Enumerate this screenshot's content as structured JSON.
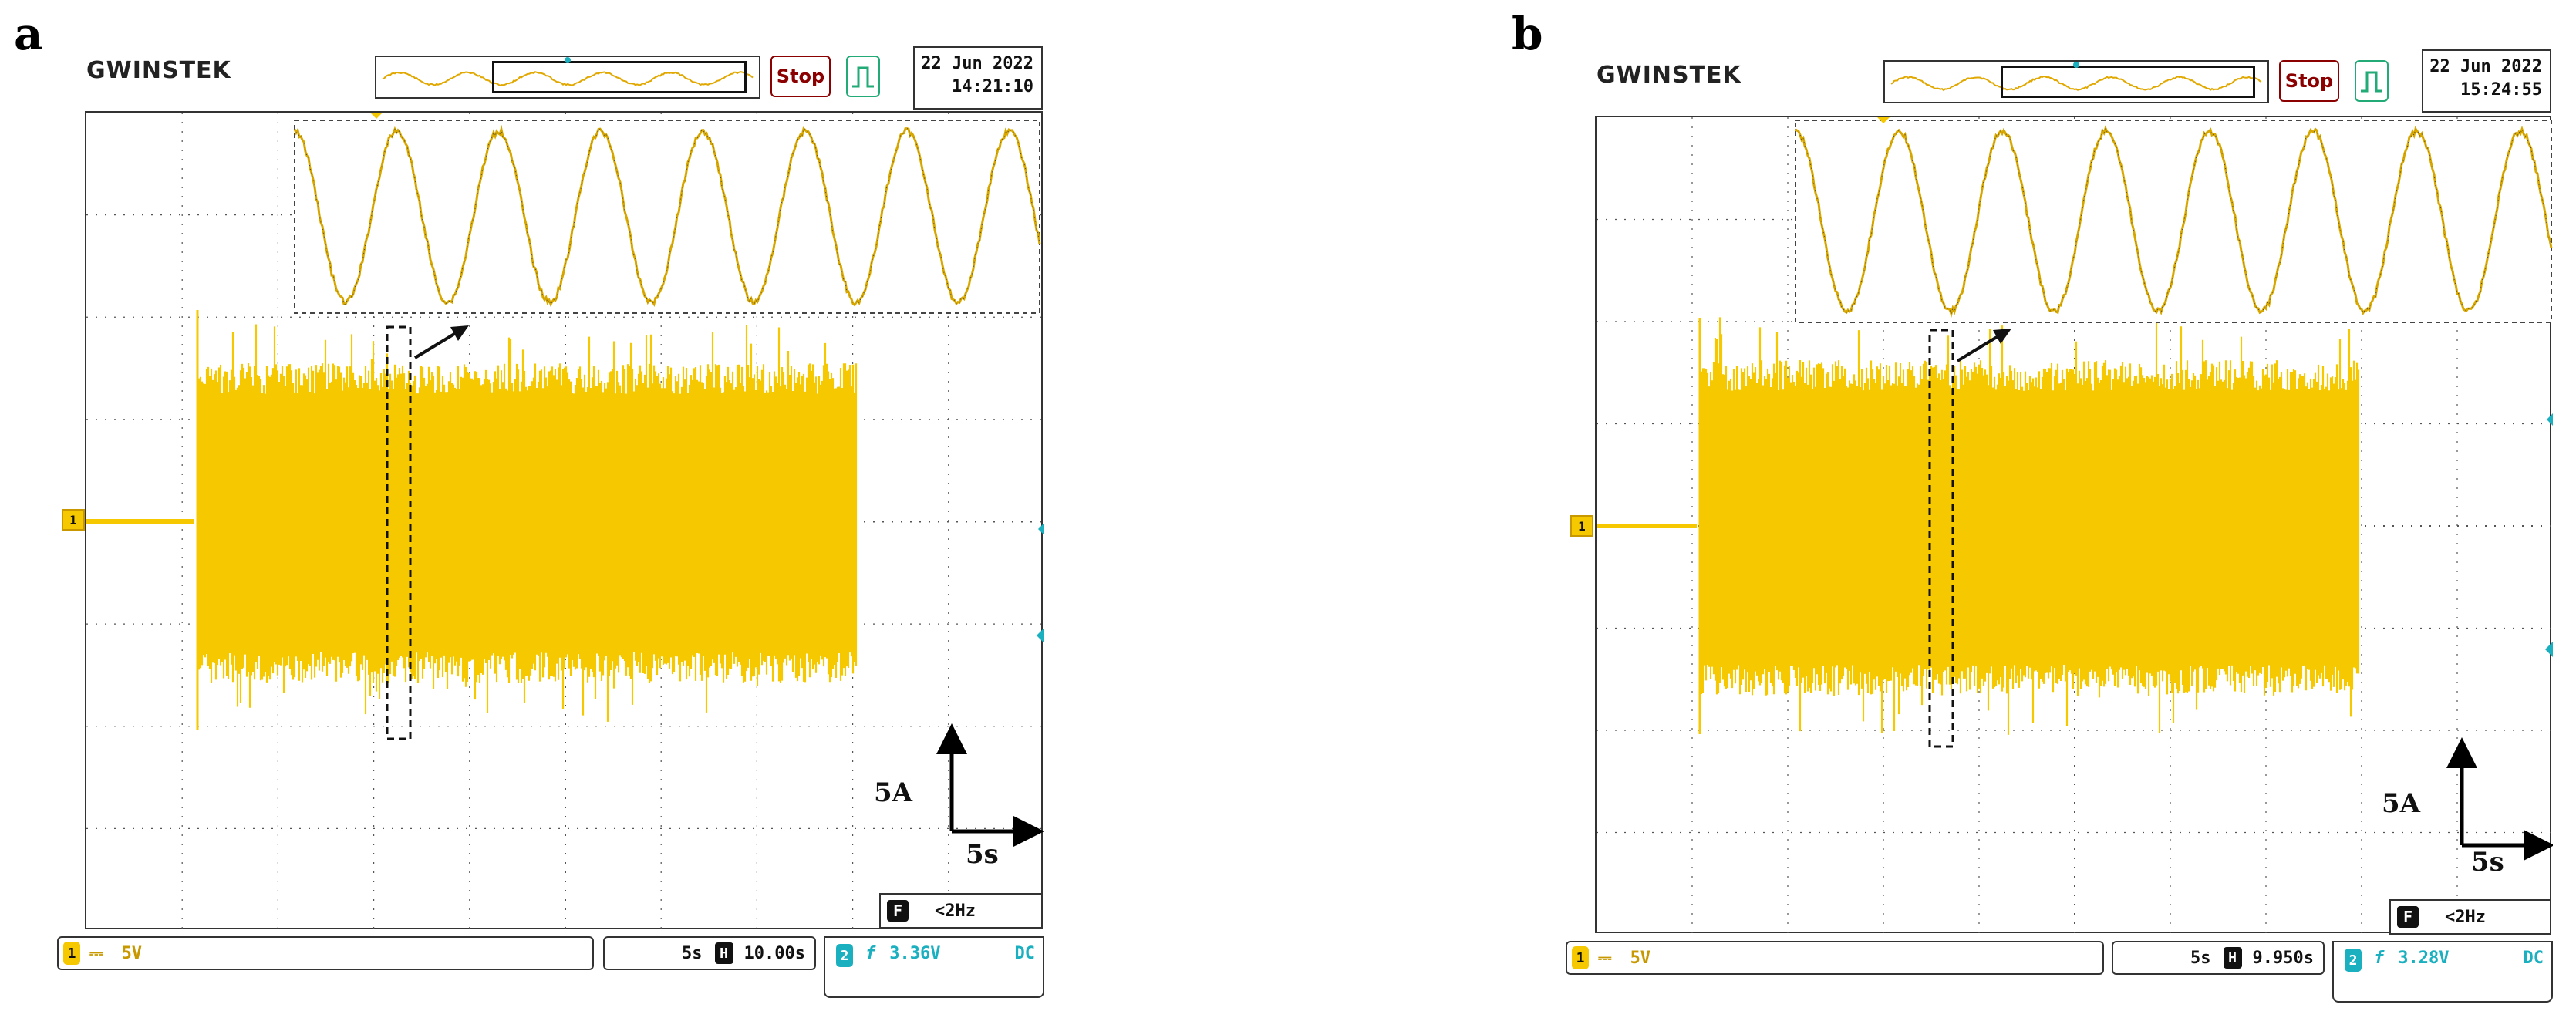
{
  "panels": [
    {
      "letter": "a",
      "brand": "GWINSTEK",
      "run_state": "Stop",
      "date": "22 Jun 2022",
      "time": "14:21:10",
      "channel_marker": "1",
      "vertical_scale_label": "5A",
      "horizontal_scale_label": "5s",
      "trigger_f_icon": "F",
      "trigger_freq": "<2Hz",
      "ch1": {
        "num": "1",
        "coupling": "⎓",
        "volts_div": "5V"
      },
      "timebase": {
        "time_div": "5s",
        "h_icon": "H",
        "position": "10.00s"
      },
      "trigger": {
        "num": "2",
        "slope": "f",
        "level": "3.36V",
        "coupling": "DC"
      },
      "colors": {
        "trace": "#f5c800",
        "grid": "#555555",
        "accent": "#1ab0c0"
      }
    },
    {
      "letter": "b",
      "brand": "GWINSTEK",
      "run_state": "Stop",
      "date": "22 Jun 2022",
      "time": "15:24:55",
      "channel_marker": "1",
      "vertical_scale_label": "5A",
      "horizontal_scale_label": "5s",
      "trigger_f_icon": "F",
      "trigger_freq": "<2Hz",
      "ch1": {
        "num": "1",
        "coupling": "⎓",
        "volts_div": "5V"
      },
      "timebase": {
        "time_div": "5s",
        "h_icon": "H",
        "position": "9.950s"
      },
      "trigger": {
        "num": "2",
        "slope": "f",
        "level": "3.28V",
        "coupling": "DC"
      },
      "colors": {
        "trace": "#f5c800",
        "grid": "#555555",
        "accent": "#1ab0c0"
      }
    }
  ]
}
